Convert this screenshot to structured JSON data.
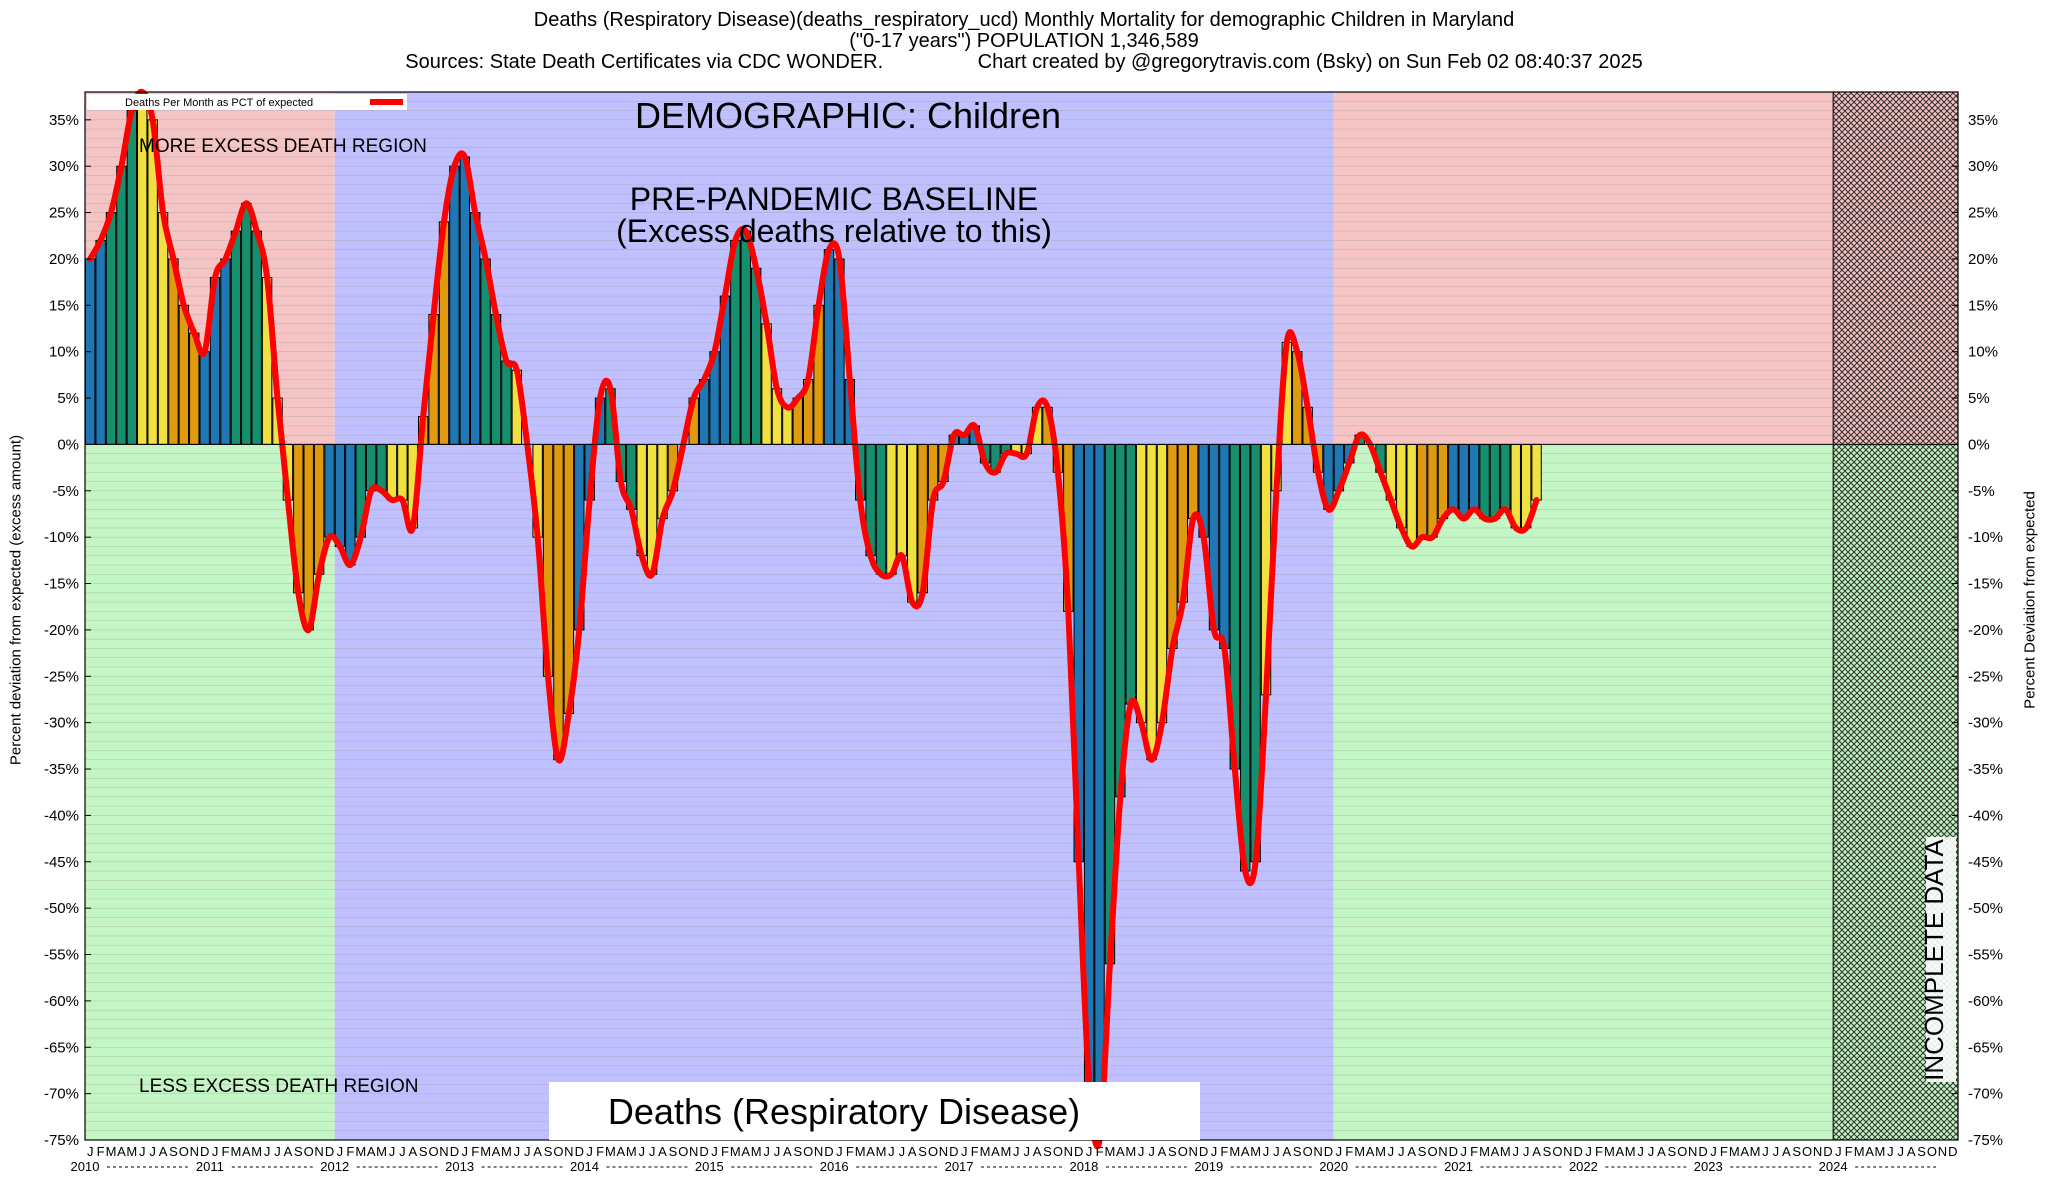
{
  "header": {
    "line1": "Deaths (Respiratory Disease)(deaths_respiratory_ucd) Monthly Mortality for demographic Children in Maryland",
    "line2": "(\"0-17 years\") POPULATION 1,346,589",
    "line3": "Sources: State Death Certificates via CDC WONDER.                 Chart created by @gregorytravis.com (Bsky) on Sun Feb 02 08:40:37 2025"
  },
  "chart_data": {
    "type": "bar",
    "ylabel": "Percent deviation from expected (excess amount)",
    "ylabel_right": "Percent Deviation from expected",
    "ylim": [
      -75,
      38
    ],
    "y_ticks": [
      "35%",
      "30%",
      "25%",
      "20%",
      "15%",
      "10%",
      "5%",
      "0%",
      "-5%",
      "-10%",
      "-15%",
      "-20%",
      "-25%",
      "-30%",
      "-35%",
      "-40%",
      "-45%",
      "-50%",
      "-55%",
      "-60%",
      "-65%",
      "-70%",
      "-75%"
    ],
    "y_tick_values": [
      35,
      30,
      25,
      20,
      15,
      10,
      5,
      0,
      -5,
      -10,
      -15,
      -20,
      -25,
      -30,
      -35,
      -40,
      -45,
      -50,
      -55,
      -60,
      -65,
      -70,
      -75
    ],
    "month_letters": [
      "J",
      "F",
      "M",
      "A",
      "M",
      "J",
      "J",
      "A",
      "S",
      "O",
      "N",
      "D"
    ],
    "years": [
      "2010",
      "2011",
      "2012",
      "2013",
      "2014",
      "2015",
      "2016",
      "2017",
      "2018",
      "2019",
      "2020",
      "2021",
      "2022",
      "2023",
      "2024"
    ],
    "start": "2010-01",
    "legend": "Deaths Per Month as PCT of expected",
    "demographic_label": "DEMOGRAPHIC: Children",
    "baseline_label_1": "PRE-PANDEMIC BASELINE",
    "baseline_label_2": "(Excess deaths relative to this)",
    "more_region_label": "MORE EXCESS DEATH REGION",
    "less_region_label": "LESS EXCESS DEATH REGION",
    "bottom_label": "Deaths (Respiratory Disease)",
    "incomplete_label": "INCOMPLETE DATA",
    "season_colors": [
      "#1f77b4",
      "#168f6e",
      "#f0e040",
      "#e09a10"
    ],
    "line_color": "#ff0000",
    "region_colors": {
      "baseline": "#c0c0ff",
      "more": "#f5c4c4",
      "less": "#c4f5c4"
    },
    "values": [
      20,
      22,
      25,
      30,
      36,
      38,
      35,
      25,
      20,
      15,
      12,
      10,
      18,
      20,
      23,
      26,
      23,
      18,
      5,
      -6,
      -16,
      -20,
      -14,
      -10,
      -11,
      -13,
      -10,
      -5,
      -5,
      -6,
      -6,
      -9,
      3,
      14,
      24,
      30,
      31,
      25,
      20,
      14,
      9,
      8,
      0,
      -10,
      -25,
      -34,
      -29,
      -20,
      -6,
      5,
      6,
      -4,
      -7,
      -12,
      -14,
      -8,
      -5,
      0,
      5,
      7,
      10,
      16,
      22,
      23,
      19,
      13,
      6,
      4,
      5,
      7,
      15,
      21,
      20,
      7,
      -6,
      -12,
      -14,
      -14,
      -12,
      -17,
      -16,
      -6,
      -4,
      1,
      1,
      2,
      -2,
      -3,
      -1,
      -1,
      -1,
      4,
      4,
      -3,
      -18,
      -45,
      -69,
      -75,
      -56,
      -38,
      -28,
      -30,
      -34,
      -30,
      -22,
      -17,
      -8,
      -10,
      -20,
      -22,
      -35,
      -46,
      -45,
      -27,
      -5,
      11,
      10,
      4,
      -3,
      -7,
      -5,
      -2,
      1,
      0,
      -3,
      -6,
      -9,
      -11,
      -10,
      -10,
      -8,
      -7,
      -8,
      -7,
      -8,
      -8,
      -7,
      -9,
      -9,
      -6
    ]
  }
}
